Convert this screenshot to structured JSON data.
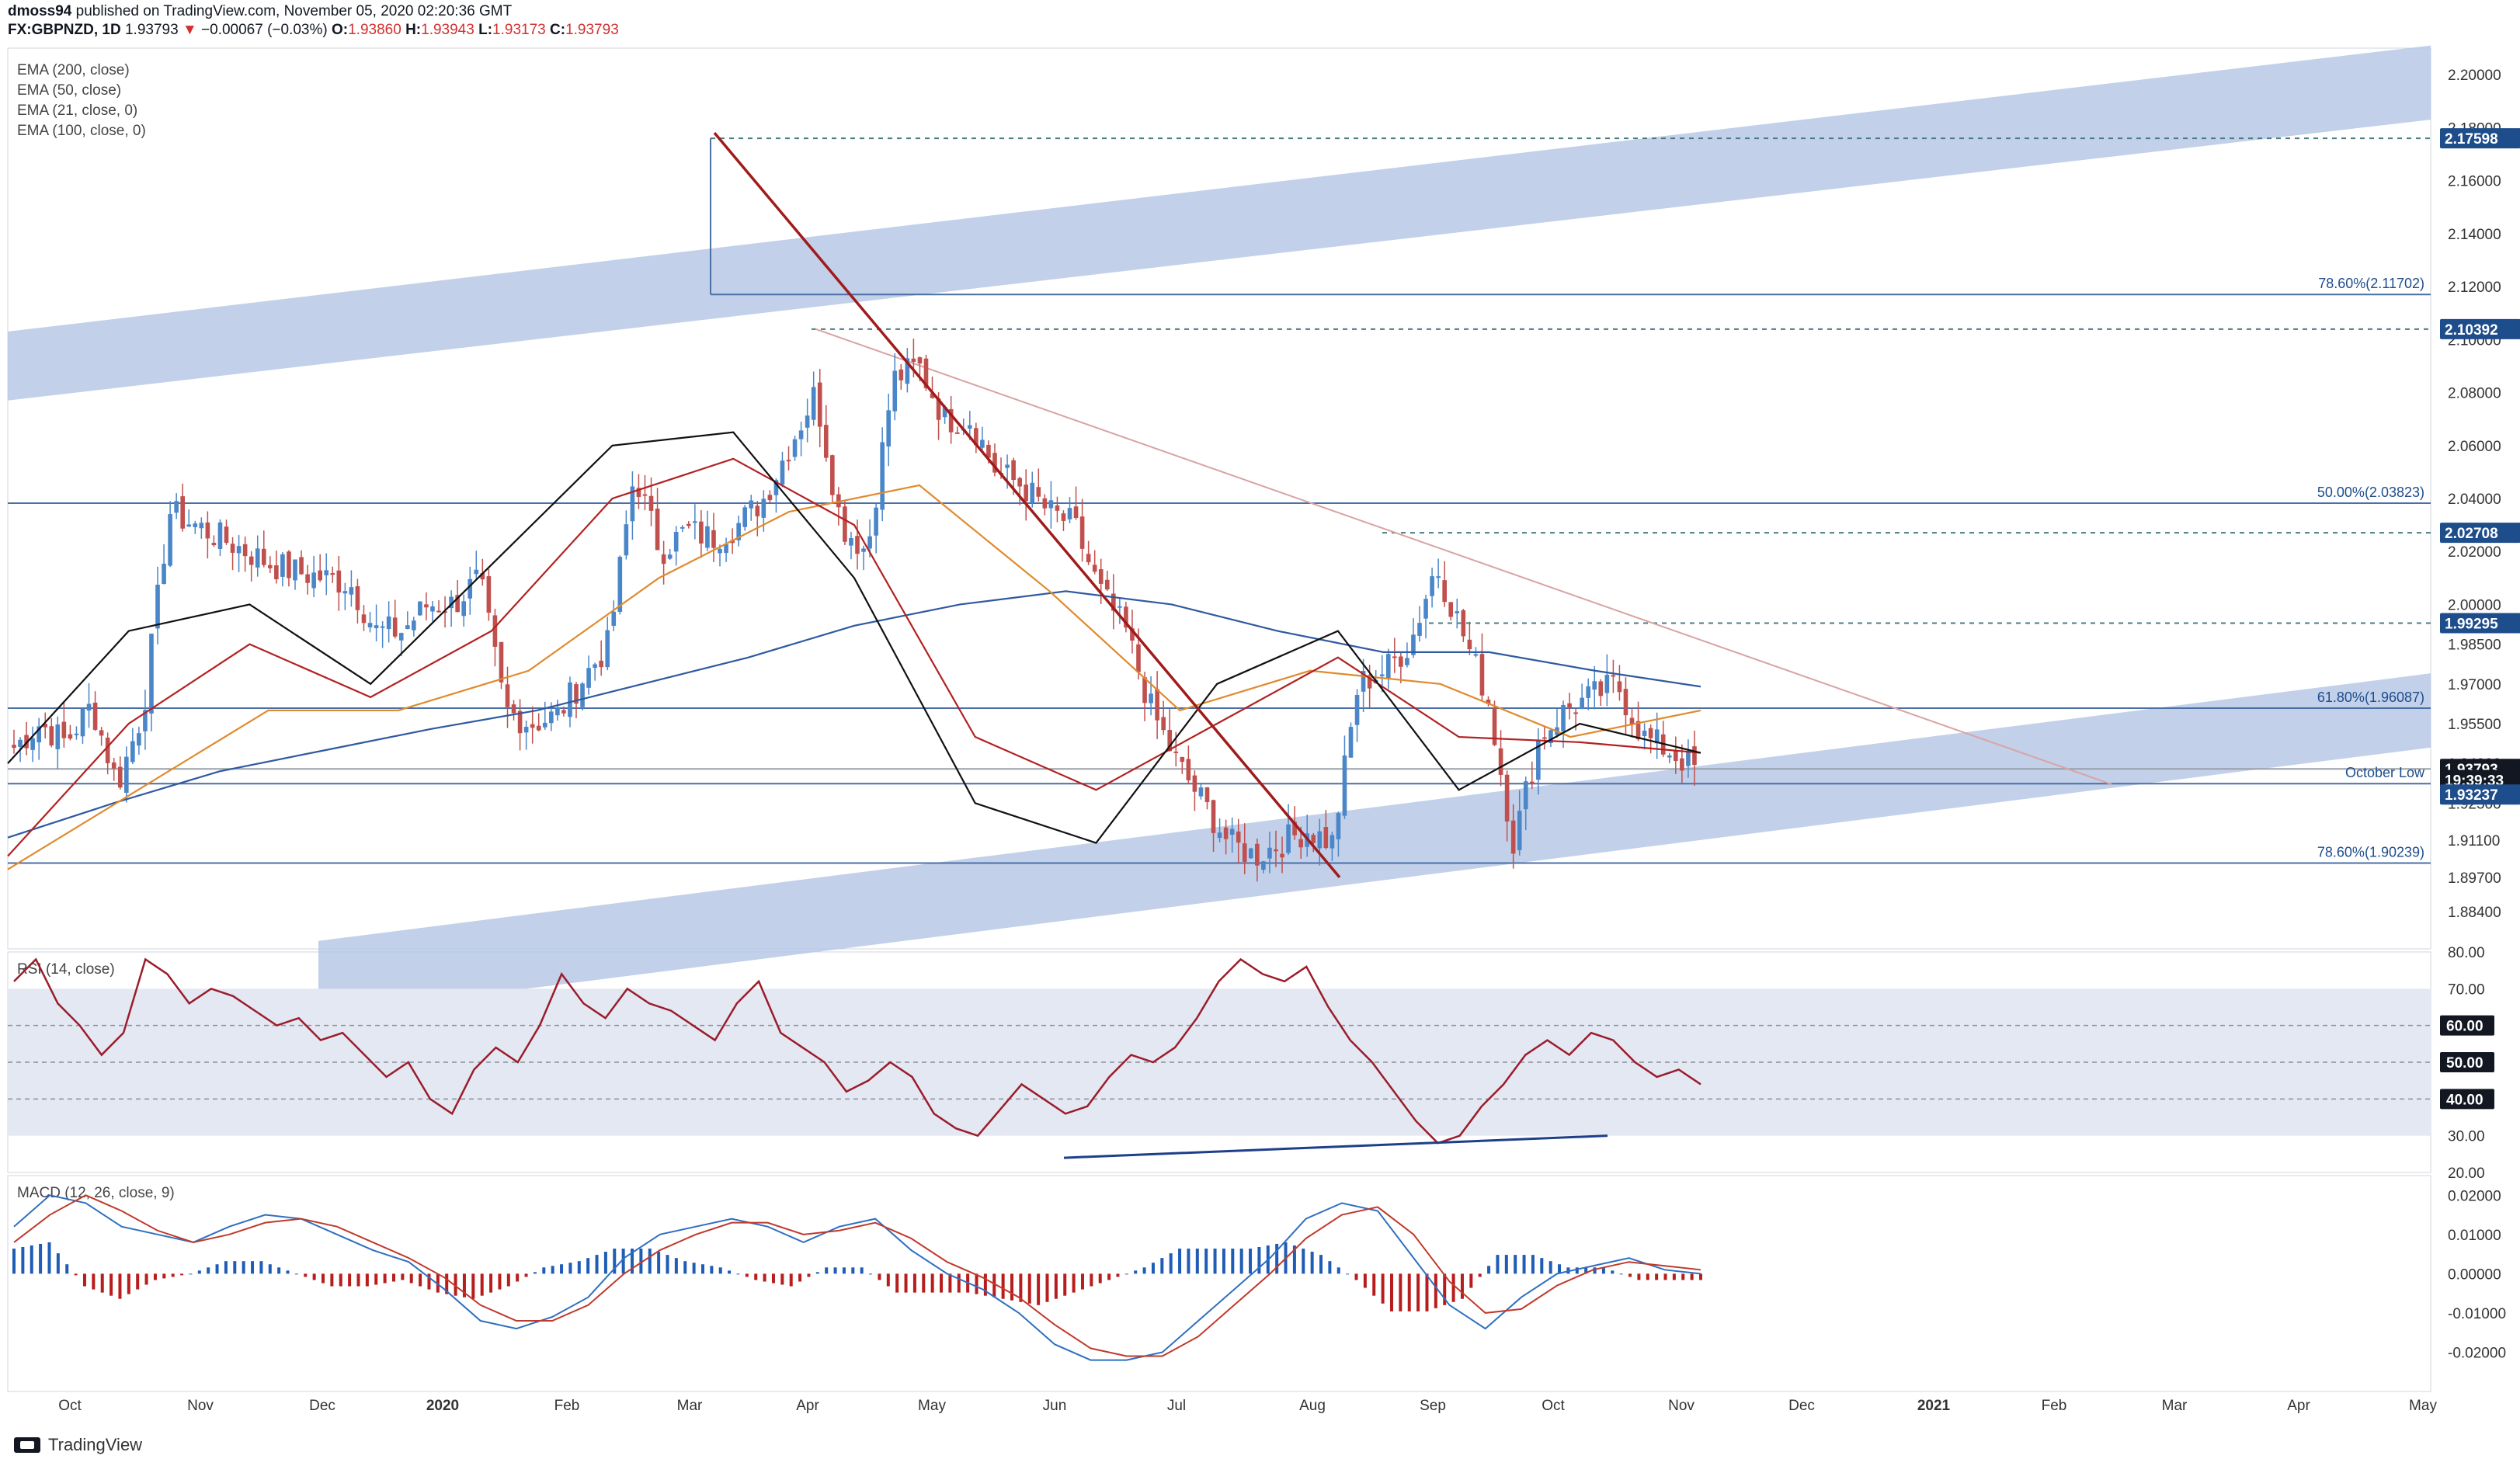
{
  "header": {
    "publisher": "dmoss94",
    "published_text": "published on TradingView.com, November 05, 2020 02:20:36 GMT",
    "symbol": "FX:GBPNZD, 1D",
    "last": "1.93793",
    "change": "−0.00067 (−0.03%)",
    "o_label": "O:",
    "o": "1.93860",
    "h_label": "H:",
    "h": "1.93943",
    "l_label": "L:",
    "l": "1.93173",
    "c_label": "C:",
    "c": "1.93793"
  },
  "legend": [
    "EMA (200, close)",
    "EMA (50, close)",
    "EMA (21, close, 0)",
    "EMA (100, close, 0)"
  ],
  "rsi_label": "RSI (14, close)",
  "macd_label": "MACD (12, 26, close, 9)",
  "footer_brand": "TradingView",
  "colors": {
    "up": "#4a86c8",
    "down": "#c0504d",
    "channel": "#b7c8e6",
    "ema200": "#2f5aa0",
    "ema100": "#e08a2c",
    "ema50": "#b22222",
    "ema21": "#111111",
    "rsi": "#9b1c2a",
    "macd": "#2f6fc0",
    "signal": "#c0392b",
    "hist_up": "#1f5cb5",
    "hist_down": "#b81d1d",
    "trend": "#a11b1b",
    "badge": "#1e4d8c"
  },
  "chart_data": [
    {
      "type": "candlestick",
      "title": "FX:GBPNZD, 1D",
      "x_categories": [
        "Oct",
        "Nov",
        "Dec",
        "2020",
        "Feb",
        "Mar",
        "Apr",
        "May",
        "Jun",
        "Jul",
        "Aug",
        "Sep",
        "Oct",
        "Nov",
        "Dec",
        "2021",
        "Feb",
        "Mar",
        "Apr",
        "May"
      ],
      "y_ticks": [
        "2.20000",
        "2.18000",
        "2.16000",
        "2.14000",
        "2.12000",
        "2.10000",
        "2.08000",
        "2.06000",
        "2.04000",
        "2.02000",
        "2.00000",
        "1.98500",
        "1.97000",
        "1.95500",
        "1.94000",
        "1.92500",
        "1.91100",
        "1.89700",
        "1.88400"
      ],
      "ylim": [
        1.87,
        2.21
      ],
      "close_path_weekly": [
        1.946,
        1.955,
        1.948,
        1.962,
        1.932,
        1.96,
        2.035,
        2.03,
        2.025,
        2.02,
        2.015,
        2.012,
        2.01,
        2.008,
        1.99,
        1.99,
        2.0,
        2.0,
        2.01,
        1.96,
        1.955,
        1.958,
        1.972,
        1.985,
        2.05,
        2.02,
        2.028,
        2.025,
        2.03,
        2.04,
        2.06,
        2.08,
        2.03,
        2.02,
        2.085,
        2.09,
        2.07,
        2.07,
        2.05,
        2.045,
        2.035,
        2.03,
        2.005,
        1.99,
        1.96,
        1.94,
        1.925,
        1.91,
        1.905,
        1.91,
        1.915,
        1.91,
        1.97,
        1.975,
        1.985,
        2.015,
        1.99,
        1.965,
        1.91,
        1.95,
        1.96,
        1.965,
        1.97,
        1.95,
        1.945,
        1.938
      ],
      "ema200": [
        1.912,
        1.925,
        1.937,
        1.945,
        1.953,
        1.96,
        1.97,
        1.98,
        1.992,
        2.0,
        2.005,
        2.0,
        1.99,
        1.982,
        1.982,
        1.975,
        1.969
      ],
      "ema100": [
        1.9,
        1.93,
        1.96,
        1.96,
        1.975,
        2.01,
        2.035,
        2.045,
        2.005,
        1.96,
        1.975,
        1.97,
        1.95,
        1.96
      ],
      "ema50": [
        1.905,
        1.955,
        1.985,
        1.965,
        1.99,
        2.04,
        2.055,
        2.03,
        1.95,
        1.93,
        1.955,
        1.98,
        1.95,
        1.948,
        1.944
      ],
      "ema21": [
        1.94,
        1.99,
        2.0,
        1.97,
        2.015,
        2.06,
        2.065,
        2.01,
        1.925,
        1.91,
        1.97,
        1.99,
        1.93,
        1.955,
        1.944
      ],
      "price_badges": [
        "2.17598",
        "2.10392",
        "2.02708",
        "1.99295",
        "1.93793",
        "19:39:33",
        "1.93237"
      ],
      "levels": [
        {
          "label": "78.60%(2.11702)",
          "value": 2.11702
        },
        {
          "label": "50.00%(2.03823)",
          "value": 2.03823
        },
        {
          "label": "61.80%(1.96087)",
          "value": 1.96087
        },
        {
          "label": "October Low",
          "value": 1.93237
        },
        {
          "label": "78.60%(1.90239)",
          "value": 1.90239
        }
      ]
    },
    {
      "type": "line",
      "title": "RSI (14, close)",
      "y_ticks": [
        "80.00",
        "70.00",
        "60.00",
        "50.00",
        "40.00",
        "30.00",
        "20.00"
      ],
      "ylim": [
        20,
        80
      ],
      "badges": [
        "60.00",
        "50.00",
        "40.00"
      ],
      "values": [
        72,
        78,
        66,
        60,
        52,
        58,
        78,
        74,
        66,
        70,
        68,
        64,
        60,
        62,
        56,
        58,
        52,
        46,
        50,
        40,
        36,
        48,
        54,
        50,
        60,
        74,
        66,
        62,
        70,
        66,
        64,
        60,
        56,
        66,
        72,
        58,
        54,
        50,
        42,
        45,
        50,
        46,
        36,
        32,
        30,
        37,
        44,
        40,
        36,
        38,
        46,
        52,
        50,
        54,
        62,
        72,
        78,
        74,
        72,
        76,
        65,
        56,
        50,
        42,
        34,
        28,
        30,
        38,
        44,
        52,
        56,
        52,
        58,
        56,
        50,
        46,
        48,
        44
      ]
    },
    {
      "type": "line",
      "title": "MACD (12, 26, close, 9)",
      "y_ticks": [
        "0.02000",
        "0.01000",
        "0.00000",
        "-0.01000",
        "-0.02000"
      ],
      "ylim": [
        -0.03,
        0.025
      ],
      "macd": [
        0.012,
        0.02,
        0.018,
        0.012,
        0.01,
        0.008,
        0.012,
        0.015,
        0.014,
        0.01,
        0.006,
        0.003,
        -0.004,
        -0.012,
        -0.014,
        -0.011,
        -0.006,
        0.004,
        0.01,
        0.012,
        0.014,
        0.012,
        0.008,
        0.012,
        0.014,
        0.006,
        0.0,
        -0.004,
        -0.01,
        -0.018,
        -0.022,
        -0.022,
        -0.02,
        -0.012,
        -0.004,
        0.004,
        0.014,
        0.018,
        0.016,
        0.004,
        -0.008,
        -0.014,
        -0.006,
        0.0,
        0.002,
        0.004,
        0.001,
        0.0
      ],
      "signal": [
        0.008,
        0.015,
        0.02,
        0.016,
        0.011,
        0.008,
        0.01,
        0.013,
        0.014,
        0.012,
        0.008,
        0.004,
        -0.001,
        -0.008,
        -0.012,
        -0.012,
        -0.008,
        0.0,
        0.006,
        0.01,
        0.013,
        0.013,
        0.01,
        0.011,
        0.013,
        0.009,
        0.003,
        -0.001,
        -0.006,
        -0.013,
        -0.019,
        -0.021,
        -0.021,
        -0.016,
        -0.008,
        0.0,
        0.009,
        0.015,
        0.017,
        0.01,
        -0.002,
        -0.01,
        -0.009,
        -0.003,
        0.001,
        0.003,
        0.002,
        0.001
      ]
    }
  ]
}
